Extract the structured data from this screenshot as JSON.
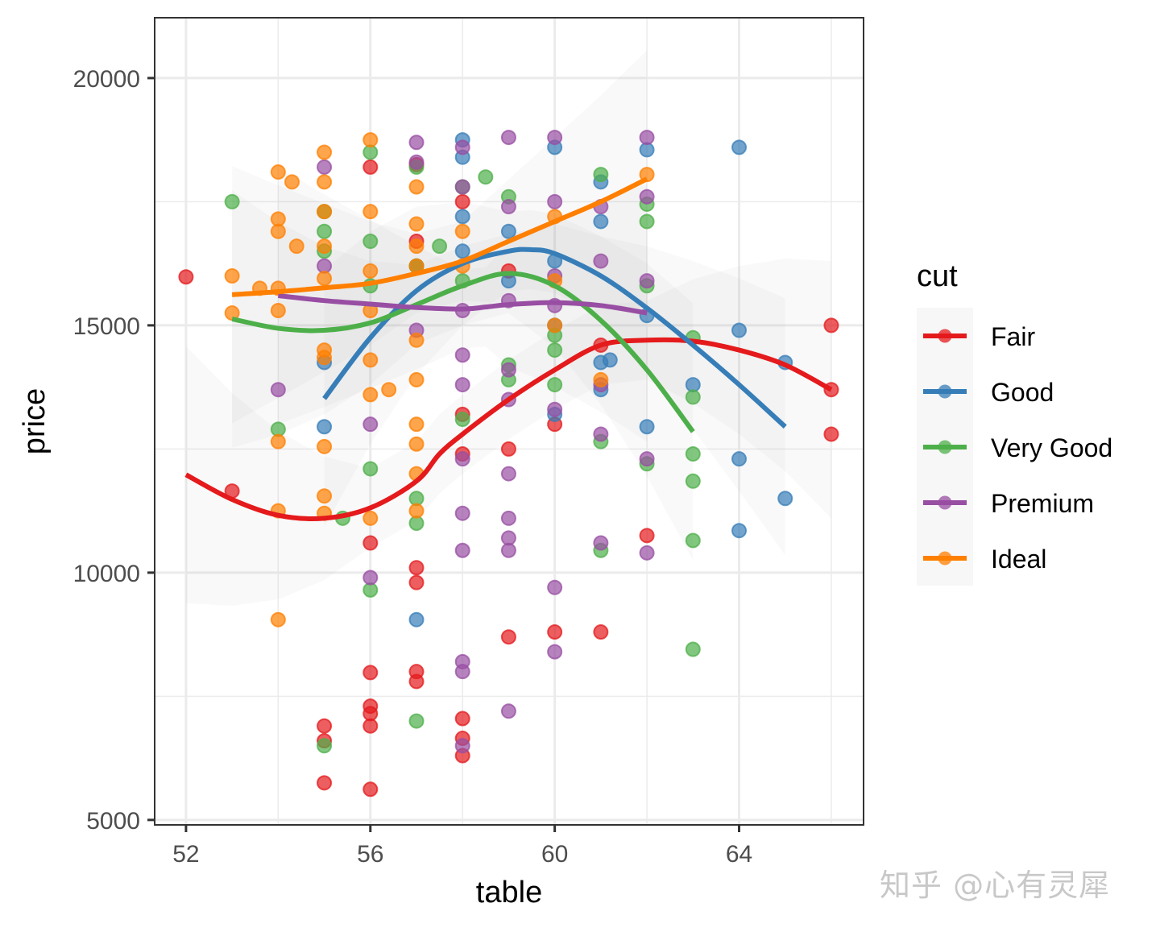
{
  "chart_data": {
    "type": "scatter",
    "xlabel": "table",
    "ylabel": "price",
    "xlim": [
      51.32,
      66.7
    ],
    "ylim": [
      4900,
      21220
    ],
    "x_ticks": [
      52,
      56,
      60,
      64
    ],
    "y_ticks": [
      5000,
      10000,
      15000,
      20000
    ],
    "x_tick_labels": [
      "52",
      "56",
      "60",
      "64"
    ],
    "y_tick_labels": [
      "5000",
      "10000",
      "15000",
      "20000"
    ],
    "grid": true,
    "legend": {
      "title": "cut",
      "position": "right"
    },
    "series": [
      {
        "name": "Fair",
        "color": "#E41A1C",
        "points": [
          [
            52,
            15980
          ],
          [
            53,
            11650
          ],
          [
            55,
            6900
          ],
          [
            55,
            6600
          ],
          [
            55,
            5750
          ],
          [
            56,
            10600
          ],
          [
            56,
            7980
          ],
          [
            56,
            7300
          ],
          [
            56,
            7150
          ],
          [
            56,
            6900
          ],
          [
            56,
            5620
          ],
          [
            56,
            18200
          ],
          [
            57,
            18250
          ],
          [
            57,
            16700
          ],
          [
            57,
            10100
          ],
          [
            57,
            9800
          ],
          [
            57,
            8000
          ],
          [
            57,
            7800
          ],
          [
            58,
            13200
          ],
          [
            58,
            12400
          ],
          [
            58,
            7050
          ],
          [
            58,
            6650
          ],
          [
            58,
            6300
          ],
          [
            58,
            17500
          ],
          [
            59,
            12500
          ],
          [
            59,
            8700
          ],
          [
            59,
            16100
          ],
          [
            60,
            8800
          ],
          [
            60,
            13000
          ],
          [
            61,
            14600
          ],
          [
            61,
            8800
          ],
          [
            62,
            10750
          ],
          [
            66,
            15000
          ],
          [
            66,
            13700
          ],
          [
            66,
            12800
          ]
        ],
        "curve": [
          [
            52,
            11980
          ],
          [
            53,
            11480
          ],
          [
            54,
            11160
          ],
          [
            55,
            11100
          ],
          [
            56,
            11310
          ],
          [
            57,
            11850
          ],
          [
            57.5,
            12400
          ],
          [
            58,
            12800
          ],
          [
            59,
            13500
          ],
          [
            60,
            14100
          ],
          [
            61,
            14600
          ],
          [
            62,
            14700
          ],
          [
            63,
            14680
          ],
          [
            64,
            14500
          ],
          [
            65,
            14200
          ],
          [
            66,
            13700
          ]
        ]
      },
      {
        "name": "Good",
        "color": "#377EB8",
        "points": [
          [
            55,
            14250
          ],
          [
            55,
            12950
          ],
          [
            57,
            9050
          ],
          [
            57,
            16200
          ],
          [
            58,
            18750
          ],
          [
            58,
            18400
          ],
          [
            58,
            17200
          ],
          [
            58,
            16500
          ],
          [
            59,
            16900
          ],
          [
            59,
            15900
          ],
          [
            60,
            18600
          ],
          [
            60,
            16300
          ],
          [
            60,
            15000
          ],
          [
            60,
            13200
          ],
          [
            61,
            17900
          ],
          [
            61,
            17100
          ],
          [
            61,
            14250
          ],
          [
            61,
            13700
          ],
          [
            61.2,
            14300
          ],
          [
            62,
            18550
          ],
          [
            62,
            15200
          ],
          [
            62,
            12950
          ],
          [
            63,
            13800
          ],
          [
            64,
            18600
          ],
          [
            64,
            14900
          ],
          [
            64,
            12300
          ],
          [
            64,
            10850
          ],
          [
            65,
            14250
          ],
          [
            65,
            11500
          ]
        ],
        "curve": [
          [
            55,
            13520
          ],
          [
            56,
            14750
          ],
          [
            57,
            15700
          ],
          [
            58,
            16250
          ],
          [
            59,
            16500
          ],
          [
            59.5,
            16530
          ],
          [
            60,
            16450
          ],
          [
            61,
            16000
          ],
          [
            62,
            15350
          ],
          [
            63,
            14600
          ],
          [
            64,
            13800
          ],
          [
            65,
            12950
          ]
        ]
      },
      {
        "name": "Very Good",
        "color": "#4DAF4A",
        "points": [
          [
            53,
            17500
          ],
          [
            54,
            12900
          ],
          [
            55,
            6500
          ],
          [
            55,
            17300
          ],
          [
            55,
            16900
          ],
          [
            55,
            16500
          ],
          [
            55.4,
            11100
          ],
          [
            56,
            18500
          ],
          [
            56,
            16700
          ],
          [
            56,
            15800
          ],
          [
            56,
            12100
          ],
          [
            56,
            9650
          ],
          [
            57,
            18200
          ],
          [
            57,
            16200
          ],
          [
            57,
            11500
          ],
          [
            57,
            11000
          ],
          [
            57,
            7000
          ],
          [
            57.5,
            16600
          ],
          [
            58,
            17800
          ],
          [
            58,
            15900
          ],
          [
            58,
            13100
          ],
          [
            58.5,
            18000
          ],
          [
            59,
            17600
          ],
          [
            59,
            14200
          ],
          [
            59,
            13900
          ],
          [
            60,
            14800
          ],
          [
            60,
            14500
          ],
          [
            60,
            13800
          ],
          [
            61,
            18050
          ],
          [
            61,
            12650
          ],
          [
            61,
            10450
          ],
          [
            62,
            17450
          ],
          [
            62,
            17100
          ],
          [
            62,
            15800
          ],
          [
            62,
            12200
          ],
          [
            63,
            14750
          ],
          [
            63,
            13550
          ],
          [
            63,
            12400
          ],
          [
            63,
            11850
          ],
          [
            63,
            10650
          ],
          [
            63,
            8450
          ]
        ],
        "curve": [
          [
            53,
            15130
          ],
          [
            54,
            14940
          ],
          [
            55,
            14900
          ],
          [
            56,
            15050
          ],
          [
            57,
            15420
          ],
          [
            58,
            15800
          ],
          [
            59,
            16050
          ],
          [
            60,
            15800
          ],
          [
            61,
            15100
          ],
          [
            62,
            14100
          ],
          [
            63,
            12850
          ]
        ]
      },
      {
        "name": "Premium",
        "color": "#984EA3",
        "points": [
          [
            54,
            13700
          ],
          [
            55,
            18200
          ],
          [
            55,
            16200
          ],
          [
            56,
            13000
          ],
          [
            56,
            9900
          ],
          [
            57,
            18700
          ],
          [
            57,
            18300
          ],
          [
            57,
            14900
          ],
          [
            58,
            18600
          ],
          [
            58,
            17800
          ],
          [
            58,
            15300
          ],
          [
            58,
            14400
          ],
          [
            58,
            13800
          ],
          [
            58,
            12300
          ],
          [
            58,
            11200
          ],
          [
            58,
            10450
          ],
          [
            58,
            8200
          ],
          [
            58,
            8000
          ],
          [
            58,
            6500
          ],
          [
            59,
            18800
          ],
          [
            59,
            17400
          ],
          [
            59,
            15500
          ],
          [
            59,
            14100
          ],
          [
            59,
            13500
          ],
          [
            59,
            12000
          ],
          [
            59,
            11100
          ],
          [
            59,
            10700
          ],
          [
            59,
            10450
          ],
          [
            59,
            7200
          ],
          [
            60,
            18800
          ],
          [
            60,
            17500
          ],
          [
            60,
            16000
          ],
          [
            60,
            15400
          ],
          [
            60,
            13300
          ],
          [
            60,
            9700
          ],
          [
            60,
            8400
          ],
          [
            61,
            17400
          ],
          [
            61,
            16300
          ],
          [
            61,
            13800
          ],
          [
            61,
            12800
          ],
          [
            61,
            10600
          ],
          [
            62,
            18800
          ],
          [
            62,
            17600
          ],
          [
            62,
            15900
          ],
          [
            62,
            12300
          ],
          [
            62,
            10400
          ]
        ],
        "curve": [
          [
            54,
            15600
          ],
          [
            55,
            15500
          ],
          [
            56,
            15430
          ],
          [
            57,
            15360
          ],
          [
            58,
            15330
          ],
          [
            58.5,
            15370
          ],
          [
            59,
            15420
          ],
          [
            60,
            15460
          ],
          [
            61,
            15400
          ],
          [
            62,
            15250
          ]
        ]
      },
      {
        "name": "Ideal",
        "color": "#FF7F00",
        "points": [
          [
            53,
            16000
          ],
          [
            53,
            15250
          ],
          [
            53.6,
            15750
          ],
          [
            54,
            18100
          ],
          [
            54,
            17150
          ],
          [
            54,
            16900
          ],
          [
            54,
            15750
          ],
          [
            54,
            15300
          ],
          [
            54,
            12650
          ],
          [
            54,
            11250
          ],
          [
            54,
            9050
          ],
          [
            54.3,
            17900
          ],
          [
            54.4,
            16600
          ],
          [
            55,
            18500
          ],
          [
            55,
            17900
          ],
          [
            55,
            17300
          ],
          [
            55,
            16600
          ],
          [
            55,
            15950
          ],
          [
            55,
            14500
          ],
          [
            55,
            14350
          ],
          [
            55,
            12550
          ],
          [
            55,
            11550
          ],
          [
            55,
            11200
          ],
          [
            56,
            18750
          ],
          [
            56,
            17300
          ],
          [
            56,
            16100
          ],
          [
            56,
            15300
          ],
          [
            56,
            14300
          ],
          [
            56,
            13600
          ],
          [
            56,
            11100
          ],
          [
            56.4,
            13700
          ],
          [
            57,
            17800
          ],
          [
            57,
            17050
          ],
          [
            57,
            16600
          ],
          [
            57,
            16200
          ],
          [
            57,
            14700
          ],
          [
            57,
            13900
          ],
          [
            57,
            13000
          ],
          [
            57,
            12600
          ],
          [
            57,
            12000
          ],
          [
            57,
            11250
          ],
          [
            58,
            16900
          ],
          [
            58,
            16200
          ],
          [
            60,
            17200
          ],
          [
            60,
            15900
          ],
          [
            60,
            15000
          ],
          [
            61,
            13900
          ],
          [
            62,
            18050
          ]
        ],
        "curve": [
          [
            53,
            15620
          ],
          [
            54,
            15680
          ],
          [
            55,
            15760
          ],
          [
            56,
            15850
          ],
          [
            57,
            16050
          ],
          [
            58,
            16300
          ],
          [
            59,
            16700
          ],
          [
            60,
            17100
          ],
          [
            61,
            17500
          ],
          [
            62,
            17960
          ]
        ]
      }
    ]
  },
  "watermark": "知乎 @心有灵犀"
}
